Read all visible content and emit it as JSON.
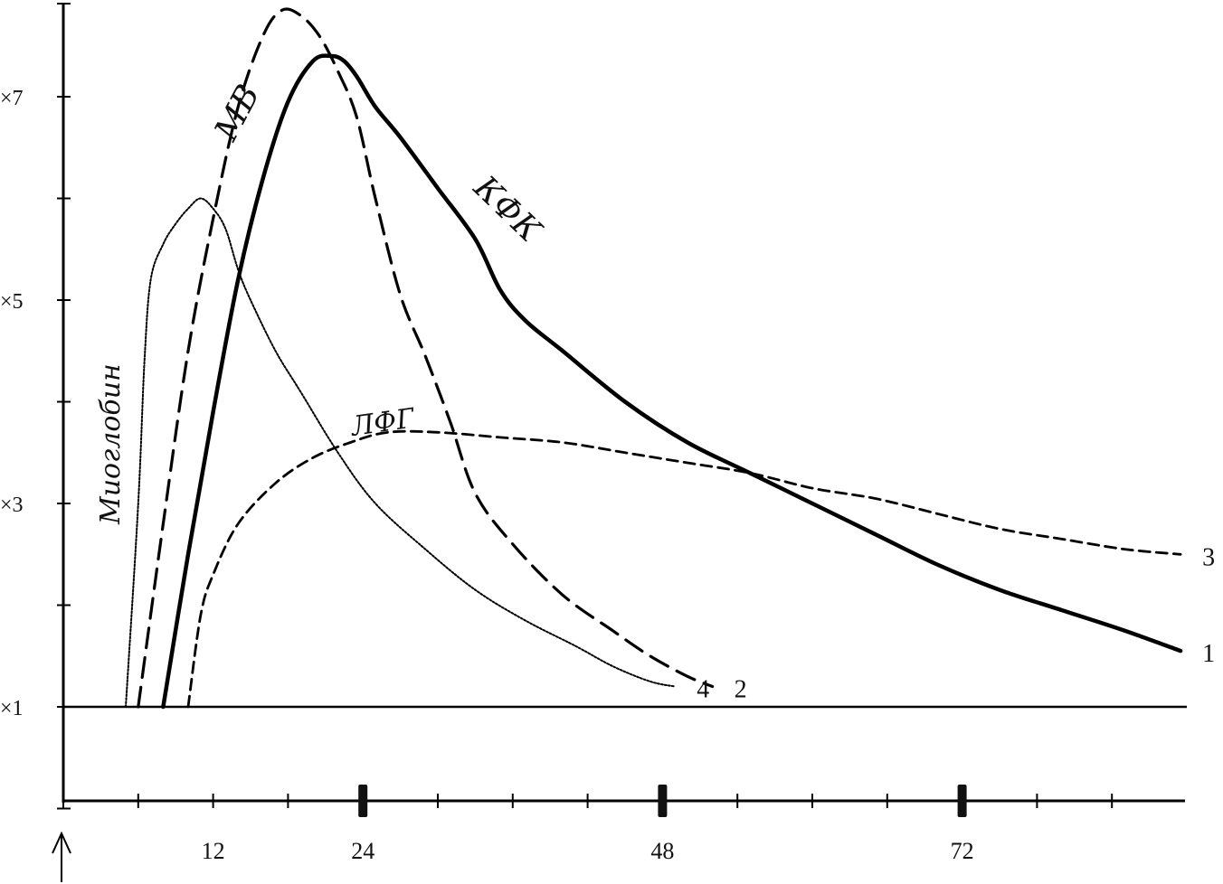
{
  "chart_data": {
    "type": "line",
    "title": "",
    "xlabel": "",
    "ylabel": "",
    "x_ticks": [
      "12",
      "24",
      "48",
      "72"
    ],
    "y_ticks": [
      "×1",
      "×3",
      "×5",
      "×7"
    ],
    "xlim": [
      0,
      90
    ],
    "ylim": [
      0,
      8.0
    ],
    "baseline_value": 1,
    "grid": false,
    "series": [
      {
        "name": "КФК",
        "number": "1",
        "style": "solid-thick",
        "x": [
          8,
          10,
          12,
          14,
          16,
          18,
          20,
          21.5,
          22.5,
          23.5,
          25,
          27,
          30,
          33,
          35,
          37,
          40,
          45,
          50,
          55,
          60,
          65,
          70,
          75,
          80,
          85,
          89.5
        ],
        "y": [
          1,
          2.5,
          3.9,
          5.2,
          6.2,
          6.95,
          7.35,
          7.4,
          7.35,
          7.2,
          6.9,
          6.6,
          6.1,
          5.6,
          5.1,
          4.8,
          4.5,
          4.0,
          3.6,
          3.3,
          3.0,
          2.7,
          2.4,
          2.15,
          1.95,
          1.75,
          1.55
        ]
      },
      {
        "name": "МВ",
        "number": "2",
        "style": "dashed",
        "x": [
          6,
          8,
          10,
          12,
          14,
          16,
          17.5,
          19,
          20.5,
          22,
          23.5,
          25,
          27,
          29,
          31,
          33,
          36,
          40,
          44,
          47,
          50,
          52
        ],
        "y": [
          1,
          2.8,
          4.5,
          5.8,
          6.9,
          7.6,
          7.85,
          7.8,
          7.6,
          7.25,
          6.8,
          6.0,
          5.05,
          4.45,
          3.8,
          3.1,
          2.6,
          2.1,
          1.75,
          1.5,
          1.3,
          1.2
        ]
      },
      {
        "name": "ЛФГ",
        "number": "3",
        "style": "dashed-fine",
        "x": [
          10,
          11,
          12,
          14,
          17,
          20,
          23,
          26,
          30,
          35,
          40,
          45,
          50,
          55,
          60,
          65,
          70,
          75,
          80,
          85,
          89.5
        ],
        "y": [
          1,
          1.9,
          2.3,
          2.8,
          3.2,
          3.45,
          3.6,
          3.7,
          3.7,
          3.65,
          3.6,
          3.5,
          3.4,
          3.3,
          3.15,
          3.05,
          2.9,
          2.75,
          2.65,
          2.55,
          2.5
        ]
      },
      {
        "name": "Миоглобин",
        "number": "4",
        "style": "dotted",
        "x": [
          5,
          6,
          6.5,
          7,
          8,
          9,
          10,
          11,
          12,
          13,
          14,
          15,
          17,
          19,
          22,
          25,
          29,
          33,
          37,
          41,
          44,
          47,
          49
        ],
        "y": [
          1,
          3.0,
          4.4,
          5.2,
          5.55,
          5.75,
          5.9,
          6.0,
          5.9,
          5.7,
          5.3,
          5.0,
          4.5,
          4.1,
          3.5,
          3.0,
          2.55,
          2.15,
          1.85,
          1.6,
          1.4,
          1.25,
          1.2
        ]
      }
    ],
    "handwritten_labels": [
      "КФК",
      "МВ",
      "ЛФГ",
      "Миоглобин"
    ]
  }
}
